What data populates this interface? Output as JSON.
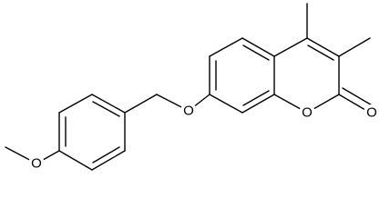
{
  "atom_labels": [
    "O",
    "O",
    "O",
    "O"
  ]
}
